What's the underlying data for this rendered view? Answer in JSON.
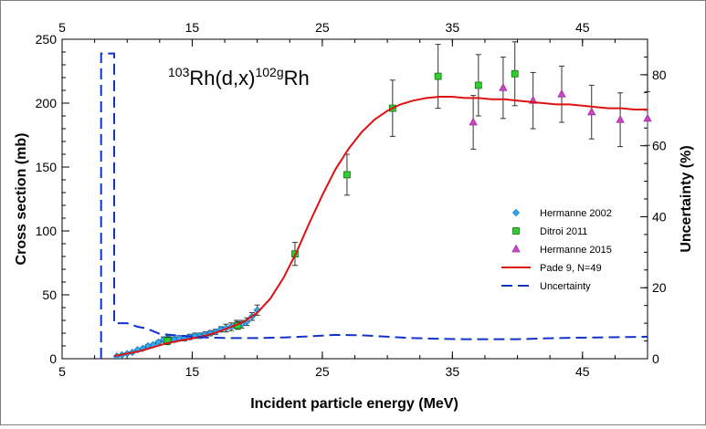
{
  "chart_data": {
    "type": "scatter",
    "title_parts": {
      "m1": "103",
      "b1": "Rh(d,x)",
      "m2": "102g",
      "b2": "Rh"
    },
    "xlabel": "Incident particle  energy (MeV)",
    "ylabel": "Cross section (mb)",
    "y2label": "Uncertainty (%)",
    "xlim": [
      5,
      50
    ],
    "ylim": [
      0,
      250
    ],
    "y2lim": [
      0,
      90
    ],
    "xticks": [
      5,
      15,
      25,
      35,
      45
    ],
    "yticks": [
      0,
      50,
      100,
      150,
      200,
      250
    ],
    "y2ticks": [
      0,
      20,
      40,
      60,
      80
    ],
    "grid": false,
    "legend_position": "right-middle",
    "series": [
      {
        "name": "Hermanne 2002",
        "kind": "scatter",
        "marker": "diamond",
        "color": "#33aaee",
        "points": [
          [
            9.2,
            2,
            0
          ],
          [
            9.6,
            3,
            0
          ],
          [
            10.0,
            4,
            0
          ],
          [
            10.4,
            5,
            0
          ],
          [
            10.8,
            7,
            0
          ],
          [
            11.2,
            8,
            0
          ],
          [
            11.6,
            10,
            1
          ],
          [
            12.0,
            11,
            1
          ],
          [
            12.4,
            13,
            1
          ],
          [
            12.8,
            15,
            2
          ],
          [
            13.2,
            16,
            2
          ],
          [
            13.6,
            15,
            2
          ],
          [
            14.0,
            16,
            2
          ],
          [
            14.4,
            16,
            2
          ],
          [
            14.8,
            17,
            2
          ],
          [
            15.2,
            18,
            2
          ],
          [
            15.6,
            18,
            2
          ],
          [
            16.0,
            19,
            2
          ],
          [
            16.4,
            20,
            2
          ],
          [
            16.8,
            21,
            2
          ],
          [
            17.2,
            23,
            2
          ],
          [
            17.6,
            24,
            3
          ],
          [
            18.0,
            25,
            3
          ],
          [
            18.4,
            27,
            3
          ],
          [
            18.8,
            27,
            3
          ],
          [
            19.2,
            29,
            3
          ],
          [
            19.6,
            33,
            3
          ],
          [
            20.0,
            38,
            4
          ]
        ]
      },
      {
        "name": "Ditroi 2011",
        "kind": "scatter",
        "marker": "square",
        "color": "#33cc33",
        "points": [
          [
            13.1,
            14,
            3
          ],
          [
            18.5,
            26,
            3
          ],
          [
            22.9,
            82,
            9
          ],
          [
            26.9,
            144,
            16
          ],
          [
            30.4,
            196,
            22
          ],
          [
            33.9,
            221,
            25
          ],
          [
            37.0,
            214,
            24
          ],
          [
            39.8,
            223,
            25
          ]
        ]
      },
      {
        "name": "Hermanne 2015",
        "kind": "scatter",
        "marker": "triangle",
        "color": "#cc44cc",
        "points": [
          [
            36.6,
            185,
            21
          ],
          [
            38.9,
            212,
            24
          ],
          [
            41.2,
            202,
            22
          ],
          [
            43.4,
            207,
            22
          ],
          [
            45.7,
            193,
            21
          ],
          [
            47.9,
            187,
            21
          ],
          [
            50.0,
            188,
            21
          ]
        ]
      },
      {
        "name": "Pade 9, N=49",
        "kind": "line",
        "color": "#dd1111",
        "x": [
          9,
          10,
          11,
          12,
          13,
          14,
          15,
          16,
          17,
          18,
          19,
          20,
          21,
          22,
          23,
          24,
          25,
          26,
          27,
          28,
          29,
          30,
          31,
          32,
          33,
          34,
          35,
          36,
          37,
          38,
          39,
          40,
          41,
          42,
          43,
          44,
          45,
          46,
          47,
          48,
          49,
          50
        ],
        "y": [
          2,
          4,
          6,
          9,
          12,
          14,
          16,
          18,
          21,
          25,
          29,
          36,
          47,
          63,
          83,
          106,
          128,
          148,
          164,
          177,
          187,
          194,
          199,
          202,
          204,
          205,
          205,
          204,
          204,
          203,
          203,
          202,
          201,
          200,
          199,
          199,
          198,
          197,
          196,
          196,
          195,
          195
        ]
      },
      {
        "name": "Uncertainty",
        "kind": "step",
        "axis": "right",
        "dash": true,
        "color": "#1133cc",
        "x": [
          8,
          8,
          9,
          9,
          10,
          10.8,
          11.5,
          12.5,
          14,
          16,
          18,
          20,
          22,
          24,
          26,
          28,
          30,
          32,
          34,
          36,
          38,
          40,
          42,
          44,
          46,
          48,
          50
        ],
        "y": [
          0,
          86,
          86,
          10,
          10,
          9,
          8.5,
          7,
          6.5,
          6,
          5.8,
          5.8,
          6,
          6.3,
          6.7,
          6.6,
          6.2,
          5.8,
          5.6,
          5.5,
          5.5,
          5.5,
          5.7,
          5.9,
          6,
          6.1,
          6.2
        ]
      }
    ]
  }
}
